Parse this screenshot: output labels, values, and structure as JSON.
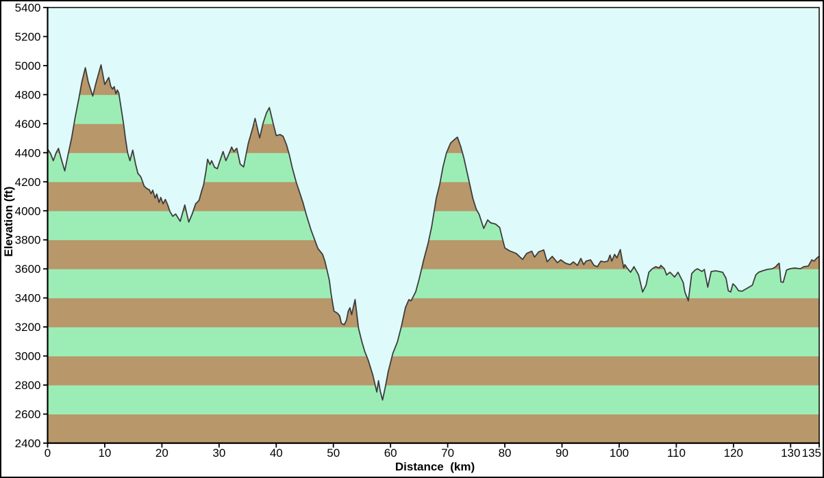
{
  "chart_data": {
    "type": "area",
    "xlabel": "Distance  (km)",
    "ylabel": "Elevation (ft)",
    "xlim": [
      0,
      135
    ],
    "ylim": [
      2400,
      5400
    ],
    "x_ticks": [
      0,
      10,
      20,
      30,
      40,
      50,
      60,
      70,
      80,
      90,
      100,
      110,
      120,
      130,
      135
    ],
    "y_ticks": [
      2400,
      2600,
      2800,
      3000,
      3200,
      3400,
      3600,
      3800,
      4000,
      4200,
      4400,
      4600,
      4800,
      5000,
      5200,
      5400
    ],
    "grid": false,
    "legend": false,
    "band_interval_ft": 200,
    "colors": {
      "page_background": "#ffffff",
      "plot_background": "#dffafa",
      "band_brown": "#b8976a",
      "band_green": "#9cedb5",
      "outline": "#3c3c3c",
      "axis": "#000000",
      "border": "#000000",
      "text": "#000000"
    },
    "series": [
      {
        "name": "elevation-profile",
        "points": [
          [
            0.0,
            4425
          ],
          [
            0.5,
            4395
          ],
          [
            1.0,
            4345
          ],
          [
            1.5,
            4400
          ],
          [
            1.9,
            4430
          ],
          [
            2.3,
            4370
          ],
          [
            3.0,
            4275
          ],
          [
            3.6,
            4390
          ],
          [
            4.2,
            4500
          ],
          [
            4.8,
            4640
          ],
          [
            5.5,
            4780
          ],
          [
            6.0,
            4890
          ],
          [
            6.6,
            4985
          ],
          [
            7.1,
            4890
          ],
          [
            7.9,
            4790
          ],
          [
            8.5,
            4885
          ],
          [
            9.35,
            5005
          ],
          [
            10.0,
            4870
          ],
          [
            10.7,
            4918
          ],
          [
            11.05,
            4858
          ],
          [
            11.35,
            4838
          ],
          [
            11.65,
            4855
          ],
          [
            11.95,
            4806
          ],
          [
            12.2,
            4832
          ],
          [
            12.45,
            4812
          ],
          [
            12.9,
            4700
          ],
          [
            13.3,
            4595
          ],
          [
            13.65,
            4490
          ],
          [
            14.0,
            4400
          ],
          [
            14.4,
            4345
          ],
          [
            14.9,
            4418
          ],
          [
            15.4,
            4320
          ],
          [
            15.8,
            4258
          ],
          [
            16.3,
            4235
          ],
          [
            16.9,
            4170
          ],
          [
            17.4,
            4152
          ],
          [
            17.8,
            4145
          ],
          [
            18.1,
            4118
          ],
          [
            18.4,
            4142
          ],
          [
            18.8,
            4088
          ],
          [
            19.1,
            4115
          ],
          [
            19.5,
            4058
          ],
          [
            19.8,
            4092
          ],
          [
            20.2,
            4048
          ],
          [
            20.6,
            4078
          ],
          [
            21.0,
            4042
          ],
          [
            21.4,
            3995
          ],
          [
            21.9,
            3962
          ],
          [
            22.4,
            3978
          ],
          [
            23.2,
            3928
          ],
          [
            24.0,
            4040
          ],
          [
            24.7,
            3922
          ],
          [
            25.3,
            3978
          ],
          [
            25.9,
            4048
          ],
          [
            26.5,
            4072
          ],
          [
            26.9,
            4130
          ],
          [
            27.3,
            4180
          ],
          [
            27.7,
            4270
          ],
          [
            28.0,
            4355
          ],
          [
            28.4,
            4318
          ],
          [
            28.7,
            4345
          ],
          [
            29.2,
            4300
          ],
          [
            29.7,
            4290
          ],
          [
            30.2,
            4350
          ],
          [
            30.7,
            4408
          ],
          [
            31.2,
            4345
          ],
          [
            31.7,
            4390
          ],
          [
            32.2,
            4439
          ],
          [
            32.6,
            4408
          ],
          [
            33.1,
            4431
          ],
          [
            33.7,
            4321
          ],
          [
            34.3,
            4302
          ],
          [
            35.1,
            4463
          ],
          [
            35.9,
            4573
          ],
          [
            36.3,
            4636
          ],
          [
            36.7,
            4570
          ],
          [
            37.1,
            4502
          ],
          [
            37.7,
            4604
          ],
          [
            38.3,
            4675
          ],
          [
            38.8,
            4711
          ],
          [
            39.5,
            4596
          ],
          [
            40.0,
            4518
          ],
          [
            40.7,
            4525
          ],
          [
            41.2,
            4513
          ],
          [
            41.8,
            4455
          ],
          [
            42.3,
            4384
          ],
          [
            42.8,
            4298
          ],
          [
            43.5,
            4196
          ],
          [
            44.1,
            4125
          ],
          [
            44.7,
            4054
          ],
          [
            45.3,
            3968
          ],
          [
            46.1,
            3866
          ],
          [
            46.7,
            3803
          ],
          [
            47.3,
            3740
          ],
          [
            48.1,
            3701
          ],
          [
            48.5,
            3655
          ],
          [
            48.9,
            3590
          ],
          [
            49.3,
            3520
          ],
          [
            49.6,
            3427
          ],
          [
            50.1,
            3309
          ],
          [
            50.7,
            3295
          ],
          [
            51.1,
            3276
          ],
          [
            51.4,
            3224
          ],
          [
            51.9,
            3215
          ],
          [
            52.3,
            3248
          ],
          [
            52.6,
            3309
          ],
          [
            52.9,
            3332
          ],
          [
            53.2,
            3285
          ],
          [
            53.8,
            3389
          ],
          [
            54.4,
            3191
          ],
          [
            55.0,
            3097
          ],
          [
            55.5,
            3030
          ],
          [
            56.1,
            2971
          ],
          [
            56.9,
            2869
          ],
          [
            57.6,
            2752
          ],
          [
            57.9,
            2830
          ],
          [
            58.2,
            2760
          ],
          [
            58.6,
            2697
          ],
          [
            59.1,
            2790
          ],
          [
            59.6,
            2893
          ],
          [
            60.4,
            3018
          ],
          [
            61.2,
            3097
          ],
          [
            61.9,
            3204
          ],
          [
            62.6,
            3333
          ],
          [
            63.2,
            3388
          ],
          [
            63.6,
            3380
          ],
          [
            64.4,
            3442
          ],
          [
            65.0,
            3529
          ],
          [
            65.8,
            3662
          ],
          [
            66.6,
            3780
          ],
          [
            67.2,
            3890
          ],
          [
            68.0,
            4086
          ],
          [
            68.6,
            4180
          ],
          [
            69.2,
            4306
          ],
          [
            69.8,
            4400
          ],
          [
            70.5,
            4466
          ],
          [
            71.1,
            4488
          ],
          [
            71.7,
            4507
          ],
          [
            72.3,
            4440
          ],
          [
            72.8,
            4368
          ],
          [
            73.6,
            4227
          ],
          [
            74.4,
            4086
          ],
          [
            75.0,
            4011
          ],
          [
            75.5,
            3976
          ],
          [
            76.3,
            3879
          ],
          [
            77.0,
            3937
          ],
          [
            77.5,
            3918
          ],
          [
            78.4,
            3908
          ],
          [
            79.1,
            3885
          ],
          [
            79.7,
            3788
          ],
          [
            80.0,
            3744
          ],
          [
            80.8,
            3725
          ],
          [
            82.0,
            3706
          ],
          [
            83.1,
            3665
          ],
          [
            83.8,
            3706
          ],
          [
            84.7,
            3722
          ],
          [
            85.2,
            3681
          ],
          [
            85.9,
            3717
          ],
          [
            86.8,
            3731
          ],
          [
            87.4,
            3649
          ],
          [
            88.3,
            3686
          ],
          [
            89.2,
            3643
          ],
          [
            89.8,
            3662
          ],
          [
            90.6,
            3639
          ],
          [
            91.4,
            3629
          ],
          [
            92.0,
            3648
          ],
          [
            92.7,
            3624
          ],
          [
            93.3,
            3672
          ],
          [
            93.8,
            3629
          ],
          [
            94.2,
            3653
          ],
          [
            95.0,
            3662
          ],
          [
            95.6,
            3624
          ],
          [
            96.2,
            3615
          ],
          [
            96.8,
            3653
          ],
          [
            97.4,
            3648
          ],
          [
            98.0,
            3653
          ],
          [
            98.4,
            3695
          ],
          [
            98.7,
            3653
          ],
          [
            99.2,
            3700
          ],
          [
            99.6,
            3676
          ],
          [
            100.2,
            3733
          ],
          [
            100.8,
            3606
          ],
          [
            101.0,
            3629
          ],
          [
            101.4,
            3606
          ],
          [
            102.0,
            3577
          ],
          [
            102.6,
            3615
          ],
          [
            103.4,
            3558
          ],
          [
            104.1,
            3441
          ],
          [
            104.7,
            3488
          ],
          [
            105.2,
            3577
          ],
          [
            105.8,
            3601
          ],
          [
            106.4,
            3615
          ],
          [
            107.0,
            3606
          ],
          [
            107.3,
            3624
          ],
          [
            107.9,
            3601
          ],
          [
            108.3,
            3558
          ],
          [
            108.9,
            3577
          ],
          [
            109.7,
            3544
          ],
          [
            110.3,
            3577
          ],
          [
            111.2,
            3507
          ],
          [
            111.5,
            3441
          ],
          [
            112.1,
            3380
          ],
          [
            112.7,
            3568
          ],
          [
            113.3,
            3592
          ],
          [
            113.7,
            3601
          ],
          [
            114.5,
            3582
          ],
          [
            114.9,
            3596
          ],
          [
            115.5,
            3474
          ],
          [
            116.1,
            3582
          ],
          [
            116.9,
            3587
          ],
          [
            118.1,
            3577
          ],
          [
            118.7,
            3535
          ],
          [
            119.1,
            3450
          ],
          [
            119.5,
            3441
          ],
          [
            119.9,
            3497
          ],
          [
            120.3,
            3483
          ],
          [
            120.9,
            3450
          ],
          [
            121.5,
            3446
          ],
          [
            122.1,
            3460
          ],
          [
            122.7,
            3474
          ],
          [
            123.3,
            3488
          ],
          [
            123.9,
            3558
          ],
          [
            124.4,
            3577
          ],
          [
            125.1,
            3587
          ],
          [
            125.9,
            3596
          ],
          [
            126.8,
            3601
          ],
          [
            127.4,
            3615
          ],
          [
            127.7,
            3629
          ],
          [
            128.0,
            3639
          ],
          [
            128.3,
            3511
          ],
          [
            128.7,
            3507
          ],
          [
            129.3,
            3592
          ],
          [
            129.9,
            3601
          ],
          [
            130.7,
            3606
          ],
          [
            131.7,
            3601
          ],
          [
            132.3,
            3615
          ],
          [
            133.1,
            3620
          ],
          [
            133.7,
            3662
          ],
          [
            134.1,
            3653
          ],
          [
            134.6,
            3676
          ],
          [
            135.0,
            3686
          ]
        ]
      }
    ]
  }
}
